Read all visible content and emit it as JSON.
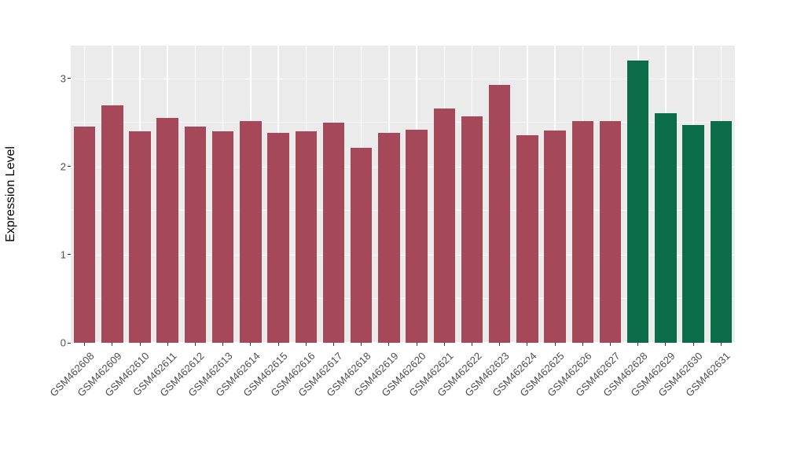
{
  "chart_data": {
    "type": "bar",
    "title": "",
    "xlabel": "",
    "ylabel": "Expression Level",
    "categories": [
      "GSM462608",
      "GSM462609",
      "GSM462610",
      "GSM462611",
      "GSM462612",
      "GSM462613",
      "GSM462614",
      "GSM462615",
      "GSM462616",
      "GSM462617",
      "GSM462618",
      "GSM462619",
      "GSM462620",
      "GSM462621",
      "GSM462622",
      "GSM462623",
      "GSM462624",
      "GSM462625",
      "GSM462626",
      "GSM462627",
      "GSM462628",
      "GSM462629",
      "GSM462630",
      "GSM462631"
    ],
    "values": [
      2.45,
      2.69,
      2.4,
      2.55,
      2.45,
      2.4,
      2.51,
      2.38,
      2.4,
      2.5,
      2.21,
      2.38,
      2.42,
      2.66,
      2.57,
      2.92,
      2.35,
      2.41,
      2.51,
      2.51,
      3.2,
      2.6,
      2.47,
      2.51
    ],
    "bar_colors": [
      "#A5485A",
      "#A5485A",
      "#A5485A",
      "#A5485A",
      "#A5485A",
      "#A5485A",
      "#A5485A",
      "#A5485A",
      "#A5485A",
      "#A5485A",
      "#A5485A",
      "#A5485A",
      "#A5485A",
      "#A5485A",
      "#A5485A",
      "#A5485A",
      "#A5485A",
      "#A5485A",
      "#A5485A",
      "#A5485A",
      "#0B6C49",
      "#0B6C49",
      "#0B6C49",
      "#0B6C49"
    ],
    "palette": {
      "group_red": "#A5485A",
      "group_green": "#0B6C49",
      "panel_background": "#EBEBEB",
      "gridline": "#FFFFFF"
    },
    "ylim": [
      0,
      3.37
    ],
    "y_major_ticks": [
      0,
      1,
      2,
      3
    ],
    "y_minor_ticks": [
      0.5,
      1.5,
      2.5
    ],
    "grid": "on",
    "legend": "none",
    "bar_width_fraction": 0.78
  }
}
